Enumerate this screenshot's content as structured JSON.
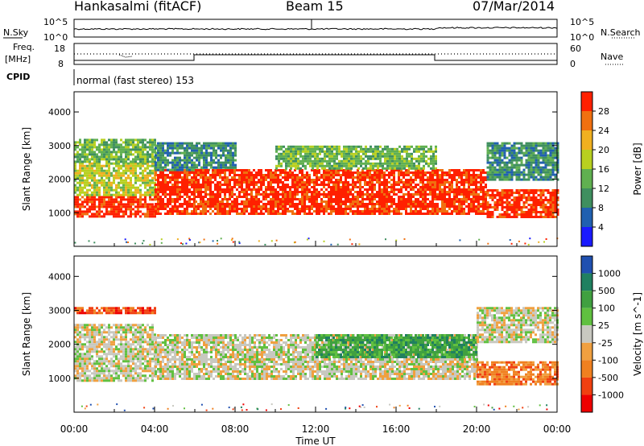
{
  "header": {
    "station": "Hankasalmi (fitACF)",
    "beam": "Beam 15",
    "date": "07/Mar/2014"
  },
  "top_panels": {
    "nsky_label": "N.Sky",
    "nsky_ticks": [
      "10^5",
      "10^0"
    ],
    "nsearch_label": "N.Search",
    "nsearch_ticks": [
      "10^5",
      "10^0"
    ],
    "freq_label": "Freq.",
    "freq_unit": "[MHz]",
    "freq_ticks": [
      "18",
      "8"
    ],
    "nave_label": "Nave",
    "nave_ticks": [
      "60",
      "0"
    ],
    "cpid_label": "CPID",
    "cpid_text": "normal (fast stereo) 153"
  },
  "colors": {
    "power": [
      "#1a1aff",
      "#2060b0",
      "#3f8f5f",
      "#60b050",
      "#b8d020",
      "#f0b020",
      "#f07010",
      "#ff2000"
    ],
    "velocity": [
      "#ee0000",
      "#f04010",
      "#f08020",
      "#f0a040",
      "#c8c8c0",
      "#60c040",
      "#40a040",
      "#208060",
      "#2050b0"
    ]
  },
  "chart_data": [
    {
      "type": "heatmap",
      "panel": "power",
      "ylabel": "Slant Range [km]",
      "yticks": [
        "1000",
        "2000",
        "3000",
        "4000"
      ],
      "ylim": [
        0,
        4600
      ],
      "xlim": [
        0,
        24
      ],
      "colorbar_label": "Power [dB]",
      "colorbar_ticks": [
        "4",
        "8",
        "12",
        "16",
        "20",
        "24",
        "28"
      ],
      "bands": [
        {
          "t0": 0.0,
          "t1": 4.0,
          "r0": 900,
          "r1": 1500,
          "level": 7
        },
        {
          "t0": 0.0,
          "t1": 4.0,
          "r0": 1500,
          "r1": 2500,
          "level": 4
        },
        {
          "t0": 0.0,
          "t1": 4.0,
          "r0": 2500,
          "r1": 3200,
          "level": 3
        },
        {
          "t0": 4.0,
          "t1": 6.0,
          "r0": 1000,
          "r1": 2300,
          "level": 7
        },
        {
          "t0": 4.0,
          "t1": 8.0,
          "r0": 2300,
          "r1": 3100,
          "level": 2
        },
        {
          "t0": 6.0,
          "t1": 18.0,
          "r0": 1000,
          "r1": 2300,
          "level": 7
        },
        {
          "t0": 10.0,
          "t1": 18.0,
          "r0": 2300,
          "r1": 3000,
          "level": 3
        },
        {
          "t0": 18.0,
          "t1": 20.5,
          "r0": 1000,
          "r1": 2300,
          "level": 7
        },
        {
          "t0": 20.5,
          "t1": 24.0,
          "r0": 900,
          "r1": 1700,
          "level": 7
        },
        {
          "t0": 20.5,
          "t1": 24.0,
          "r0": 2000,
          "r1": 3100,
          "level": 2
        }
      ]
    },
    {
      "type": "heatmap",
      "panel": "velocity",
      "ylabel": "Slant Range [km]",
      "yticks": [
        "1000",
        "2000",
        "3000",
        "4000"
      ],
      "ylim": [
        0,
        4600
      ],
      "xlabel": "Time UT",
      "xticks": [
        "00:00",
        "04:00",
        "08:00",
        "12:00",
        "16:00",
        "20:00",
        "00:00"
      ],
      "xlim": [
        0,
        24
      ],
      "colorbar_label": "Velocity [m s^-1]",
      "colorbar_ticks": [
        "1000",
        "500",
        "100",
        "25",
        "-25",
        "-100",
        "-500",
        "-1000"
      ],
      "bands": [
        {
          "t0": 0.0,
          "t1": 4.0,
          "r0": 900,
          "r1": 2600,
          "level": 4
        },
        {
          "t0": 0.0,
          "t1": 4.0,
          "r0": 2900,
          "r1": 3100,
          "level": 1
        },
        {
          "t0": 4.0,
          "t1": 20.0,
          "r0": 1000,
          "r1": 2300,
          "level": 4
        },
        {
          "t0": 12.0,
          "t1": 20.0,
          "r0": 1600,
          "r1": 2300,
          "level": 6
        },
        {
          "t0": 20.0,
          "t1": 24.0,
          "r0": 800,
          "r1": 1500,
          "level": 2
        },
        {
          "t0": 20.0,
          "t1": 24.0,
          "r0": 2100,
          "r1": 3100,
          "level": 4
        }
      ]
    }
  ]
}
